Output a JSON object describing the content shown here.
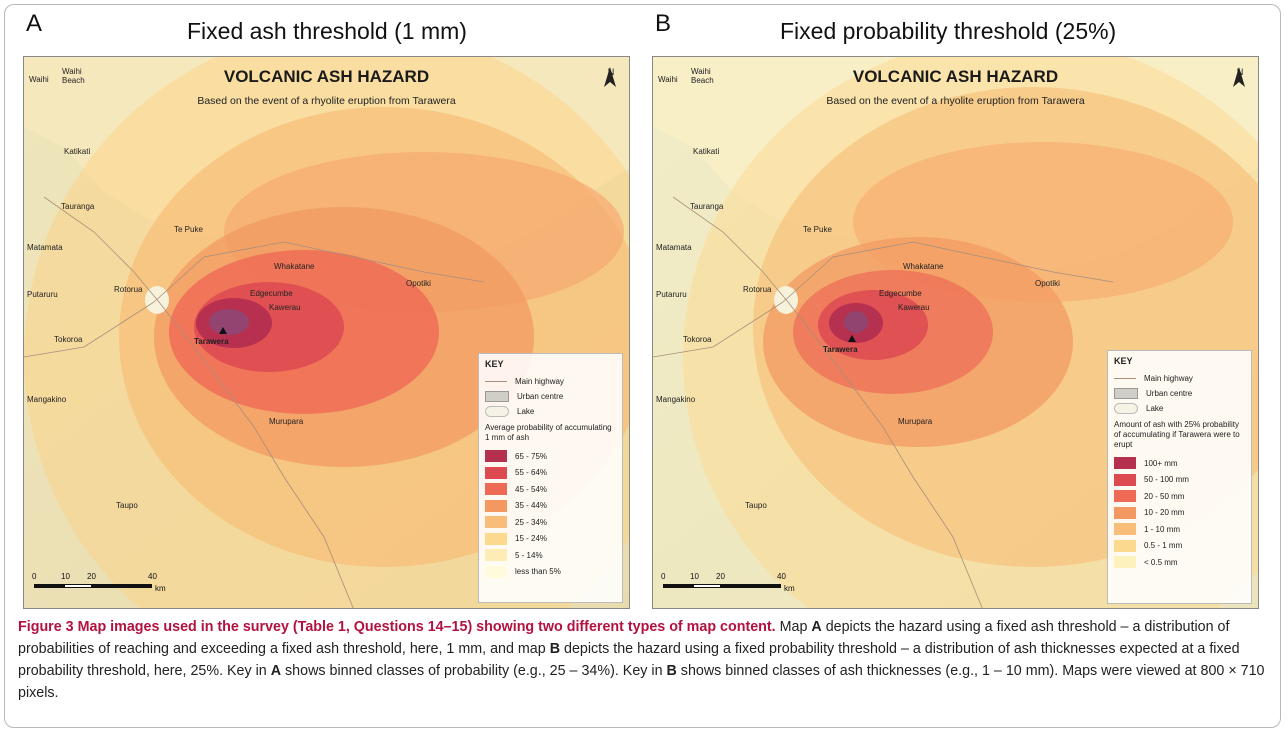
{
  "panel_a": {
    "letter": "A",
    "title": "Fixed ash threshold (1 mm)",
    "map_heading": "VOLCANIC ASH HAZARD",
    "map_subheading": "Based on the event of a rhyolite eruption from Tarawera",
    "north": "N",
    "key": {
      "title": "KEY",
      "highway": "Main highway",
      "urban": "Urban centre",
      "lake": "Lake",
      "heading": "Average probability of accumulating 1 mm of ash",
      "classes": [
        {
          "label": "65 - 75%",
          "color": "#b5304f"
        },
        {
          "label": "55 - 64%",
          "color": "#dc4b52"
        },
        {
          "label": "45 - 54%",
          "color": "#ee6a55"
        },
        {
          "label": "35 - 44%",
          "color": "#f39860"
        },
        {
          "label": "25 - 34%",
          "color": "#f8bd78"
        },
        {
          "label": "15 - 24%",
          "color": "#fbd98f"
        },
        {
          "label": "5 - 14%",
          "color": "#fdecb6"
        },
        {
          "label": "less than 5%",
          "color": "#fffbdc"
        }
      ]
    },
    "scale": {
      "ticks": [
        "0",
        "10",
        "20",
        "40"
      ],
      "unit": "km"
    }
  },
  "panel_b": {
    "letter": "B",
    "title": "Fixed probability threshold (25%)",
    "map_heading": "VOLCANIC ASH HAZARD",
    "map_subheading": "Based on the event of a rhyolite eruption from Tarawera",
    "north": "N",
    "key": {
      "title": "KEY",
      "highway": "Main highway",
      "urban": "Urban centre",
      "lake": "Lake",
      "heading": "Amount of ash with 25% probability of accumulating if Tarawera were to erupt",
      "classes": [
        {
          "label": "100+ mm",
          "color": "#b5304f"
        },
        {
          "label": "50 - 100 mm",
          "color": "#dc4b52"
        },
        {
          "label": "20 - 50 mm",
          "color": "#ee6a55"
        },
        {
          "label": "10 - 20 mm",
          "color": "#f39860"
        },
        {
          "label": "1 - 10 mm",
          "color": "#f8bd78"
        },
        {
          "label": "0.5 - 1 mm",
          "color": "#fbd98f"
        },
        {
          "label": "< 0.5 mm",
          "color": "#fdf2bd"
        }
      ]
    },
    "scale": {
      "ticks": [
        "0",
        "10",
        "20",
        "40"
      ],
      "unit": "km"
    }
  },
  "towns": {
    "waihi": "Waihi",
    "waihi_beach": "Waihi Beach",
    "katikati": "Katikati",
    "tauranga": "Tauranga",
    "te_puke": "Te Puke",
    "matamata": "Matamata",
    "whakatane": "Whakatane",
    "edgecumbe": "Edgecumbe",
    "opotiki": "Opotiki",
    "putaruru": "Putaruru",
    "rotorua": "Rotorua",
    "kawerau": "Kawerau",
    "tokoroa": "Tokoroa",
    "tarawera": "Tarawera",
    "mangakino": "Mangakino",
    "murupara": "Murupara",
    "taupo": "Taupo"
  },
  "caption": {
    "figure_label": "Figure 3 Map images used in the survey (Table 1, Questions 14–15) showing two different types of map content.",
    "t1": " Map ",
    "a": "A",
    "t2": " depicts the hazard using a fixed ash threshold – a distribution of probabilities of reaching and exceeding a fixed ash threshold, here, 1 mm, and map ",
    "b": "B",
    "t3": " depicts the hazard using a fixed probability threshold – a distribution of ash thicknesses expected at a fixed probability threshold, here, 25%. Key in ",
    "a2": "A",
    "t4": " shows binned classes of probability (e.g., 25 – 34%). Key in ",
    "b2": "B",
    "t5": " shows binned classes of ash thicknesses (e.g., 1 – 10 mm). Maps were viewed at 800 × 710 pixels."
  }
}
